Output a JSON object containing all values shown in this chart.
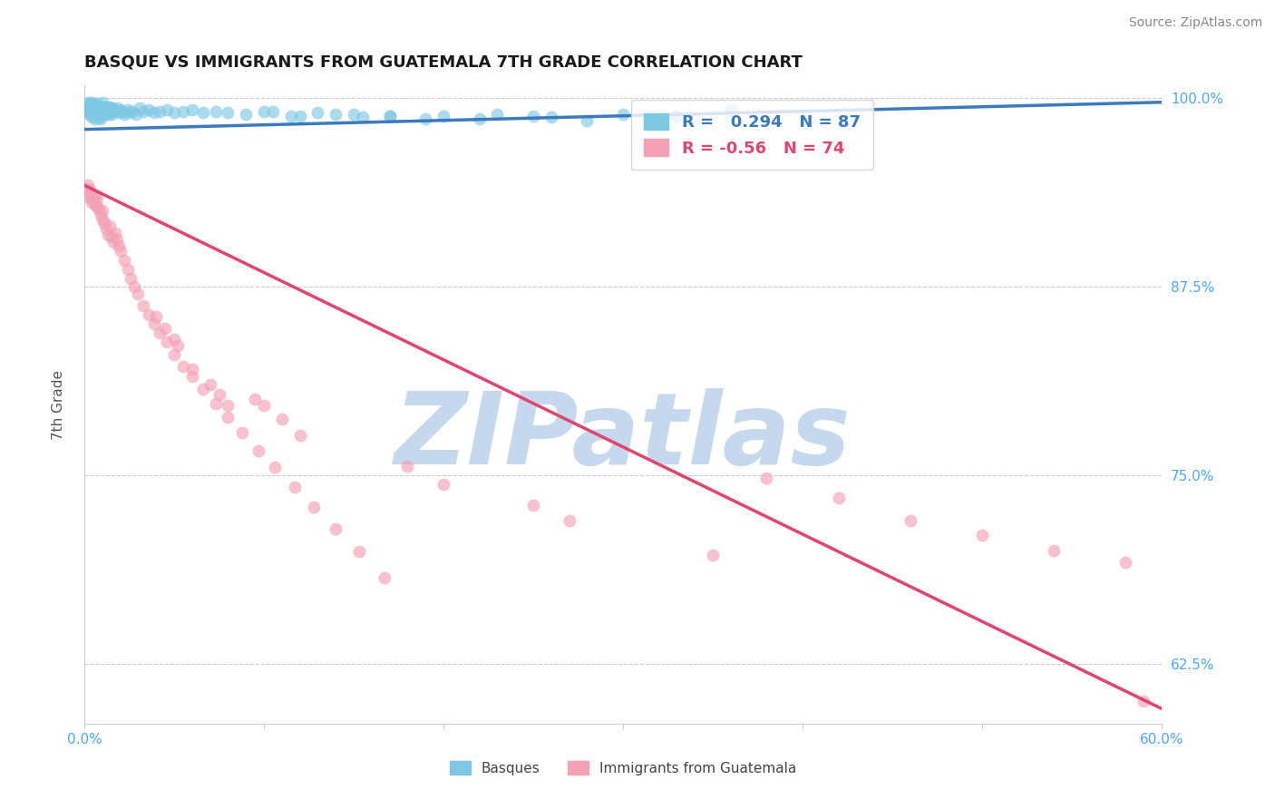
{
  "title": "BASQUE VS IMMIGRANTS FROM GUATEMALA 7TH GRADE CORRELATION CHART",
  "source": "Source: ZipAtlas.com",
  "ylabel": "7th Grade",
  "x_min": 0.0,
  "x_max": 0.6,
  "y_min": 0.585,
  "y_max": 1.008,
  "y_ticks": [
    0.625,
    0.75,
    0.875,
    1.0
  ],
  "y_tick_labels": [
    "62.5%",
    "75.0%",
    "87.5%",
    "100.0%"
  ],
  "x_tick_positions": [
    0.0,
    0.1,
    0.2,
    0.3,
    0.4,
    0.5,
    0.6
  ],
  "x_tick_labels": [
    "0.0%",
    "",
    "",
    "",
    "",
    "",
    "60.0%"
  ],
  "blue_R": 0.294,
  "blue_N": 87,
  "pink_R": -0.56,
  "pink_N": 74,
  "blue_color": "#7ec8e3",
  "pink_color": "#f4a0b5",
  "blue_line_color": "#3a7abf",
  "pink_line_color": "#e0456e",
  "blue_line_x": [
    0.0,
    0.6
  ],
  "blue_line_y": [
    0.979,
    0.997
  ],
  "pink_line_x": [
    0.0,
    0.6
  ],
  "pink_line_y": [
    0.942,
    0.595
  ],
  "watermark_color": "#c5d8ee",
  "grid_color": "#cccccc",
  "tick_label_color": "#4da6ff",
  "title_color": "#1a1a1a",
  "source_color": "#888888",
  "ylabel_color": "#555555",
  "blue_scatter_x": [
    0.001,
    0.001,
    0.002,
    0.002,
    0.002,
    0.003,
    0.003,
    0.003,
    0.003,
    0.004,
    0.004,
    0.004,
    0.004,
    0.005,
    0.005,
    0.005,
    0.005,
    0.006,
    0.006,
    0.006,
    0.007,
    0.007,
    0.007,
    0.007,
    0.008,
    0.008,
    0.008,
    0.009,
    0.009,
    0.009,
    0.01,
    0.01,
    0.01,
    0.011,
    0.011,
    0.012,
    0.012,
    0.013,
    0.013,
    0.014,
    0.014,
    0.015,
    0.015,
    0.016,
    0.017,
    0.018,
    0.019,
    0.02,
    0.021,
    0.022,
    0.024,
    0.025,
    0.027,
    0.029,
    0.031,
    0.033,
    0.036,
    0.039,
    0.042,
    0.046,
    0.05,
    0.055,
    0.06,
    0.066,
    0.073,
    0.08,
    0.09,
    0.1,
    0.115,
    0.13,
    0.15,
    0.17,
    0.2,
    0.23,
    0.26,
    0.3,
    0.33,
    0.36,
    0.22,
    0.25,
    0.28,
    0.17,
    0.19,
    0.14,
    0.155,
    0.12,
    0.105
  ],
  "blue_scatter_y": [
    0.995,
    0.992,
    0.994,
    0.99,
    0.997,
    0.993,
    0.989,
    0.996,
    0.991,
    0.994,
    0.99,
    0.987,
    0.997,
    0.993,
    0.989,
    0.996,
    0.991,
    0.994,
    0.99,
    0.986,
    0.993,
    0.989,
    0.996,
    0.991,
    0.994,
    0.99,
    0.987,
    0.993,
    0.989,
    0.986,
    0.994,
    0.99,
    0.997,
    0.993,
    0.989,
    0.994,
    0.99,
    0.993,
    0.989,
    0.994,
    0.99,
    0.993,
    0.989,
    0.992,
    0.991,
    0.993,
    0.99,
    0.992,
    0.991,
    0.989,
    0.992,
    0.99,
    0.991,
    0.989,
    0.993,
    0.991,
    0.992,
    0.99,
    0.991,
    0.992,
    0.99,
    0.991,
    0.992,
    0.99,
    0.991,
    0.99,
    0.989,
    0.991,
    0.988,
    0.99,
    0.989,
    0.988,
    0.988,
    0.989,
    0.987,
    0.989,
    0.988,
    0.992,
    0.986,
    0.988,
    0.985,
    0.988,
    0.986,
    0.989,
    0.987,
    0.988,
    0.991
  ],
  "pink_scatter_x": [
    0.001,
    0.002,
    0.002,
    0.003,
    0.003,
    0.004,
    0.004,
    0.005,
    0.006,
    0.006,
    0.007,
    0.007,
    0.008,
    0.009,
    0.01,
    0.01,
    0.011,
    0.012,
    0.013,
    0.014,
    0.015,
    0.016,
    0.017,
    0.018,
    0.019,
    0.02,
    0.022,
    0.024,
    0.026,
    0.028,
    0.03,
    0.033,
    0.036,
    0.039,
    0.042,
    0.046,
    0.05,
    0.055,
    0.06,
    0.066,
    0.073,
    0.08,
    0.088,
    0.097,
    0.106,
    0.117,
    0.128,
    0.14,
    0.153,
    0.167,
    0.04,
    0.045,
    0.05,
    0.052,
    0.095,
    0.1,
    0.11,
    0.12,
    0.25,
    0.27,
    0.35,
    0.38,
    0.42,
    0.46,
    0.5,
    0.54,
    0.58,
    0.06,
    0.07,
    0.075,
    0.08,
    0.18,
    0.2,
    0.59
  ],
  "pink_scatter_y": [
    0.94,
    0.937,
    0.942,
    0.934,
    0.939,
    0.931,
    0.936,
    0.933,
    0.929,
    0.935,
    0.928,
    0.933,
    0.926,
    0.922,
    0.919,
    0.925,
    0.917,
    0.913,
    0.909,
    0.915,
    0.908,
    0.904,
    0.91,
    0.906,
    0.902,
    0.898,
    0.892,
    0.886,
    0.88,
    0.875,
    0.87,
    0.862,
    0.856,
    0.85,
    0.844,
    0.838,
    0.83,
    0.822,
    0.815,
    0.807,
    0.797,
    0.788,
    0.778,
    0.766,
    0.755,
    0.742,
    0.729,
    0.714,
    0.699,
    0.682,
    0.855,
    0.847,
    0.84,
    0.836,
    0.8,
    0.796,
    0.787,
    0.776,
    0.73,
    0.72,
    0.697,
    0.748,
    0.735,
    0.72,
    0.71,
    0.7,
    0.692,
    0.82,
    0.81,
    0.803,
    0.796,
    0.756,
    0.744,
    0.6
  ]
}
